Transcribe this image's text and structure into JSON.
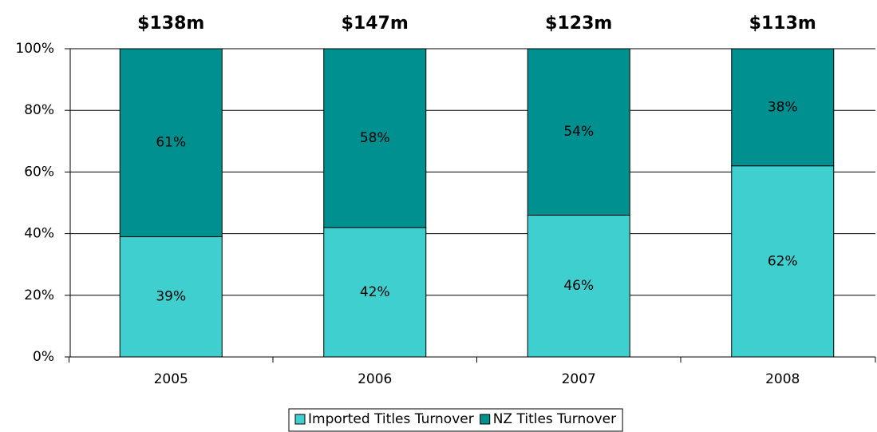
{
  "chart_data": {
    "type": "stacked_bar",
    "annotations": [
      "$138m",
      "$147m",
      "$123m",
      "$113m"
    ],
    "categories": [
      "2005",
      "2006",
      "2007",
      "2008"
    ],
    "series": [
      {
        "name": "Imported Titles Turnover",
        "color": "#40cfcf",
        "values": [
          39,
          42,
          46,
          62
        ],
        "value_labels": [
          "39%",
          "42%",
          "46%",
          "62%"
        ]
      },
      {
        "name": "NZ Titles Turnover",
        "color": "#009090",
        "values": [
          61,
          58,
          54,
          38
        ],
        "value_labels": [
          "61%",
          "58%",
          "54%",
          "38%"
        ]
      }
    ],
    "ylim": [
      0,
      100
    ],
    "yticks": [
      {
        "value": 0,
        "label": "0%"
      },
      {
        "value": 20,
        "label": "20%"
      },
      {
        "value": 40,
        "label": "40%"
      },
      {
        "value": 60,
        "label": "60%"
      },
      {
        "value": 80,
        "label": "80%"
      },
      {
        "value": 100,
        "label": "100%"
      }
    ],
    "grid": true,
    "legend": "bottom"
  }
}
